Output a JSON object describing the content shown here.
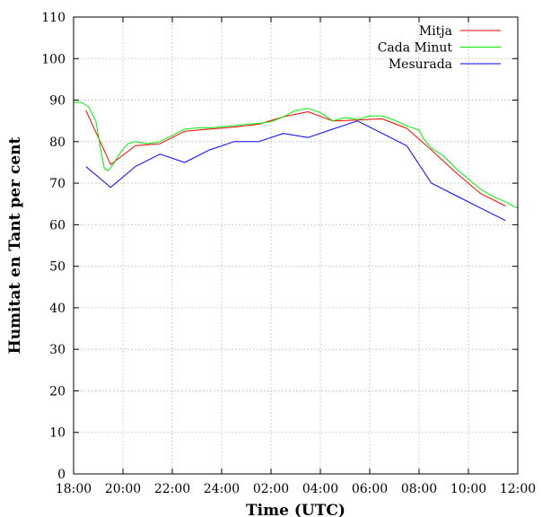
{
  "chart_data": {
    "type": "line",
    "xlabel": "Time (UTC)",
    "ylabel": "Humitat en Tant per cent",
    "ylim": [
      0,
      110
    ],
    "yticks": [
      0,
      10,
      20,
      30,
      40,
      50,
      60,
      70,
      80,
      90,
      100,
      110
    ],
    "xlim": [
      0,
      18
    ],
    "xticks": [
      {
        "v": 0,
        "label": "18:00"
      },
      {
        "v": 2,
        "label": "20:00"
      },
      {
        "v": 4,
        "label": "22:00"
      },
      {
        "v": 6,
        "label": "24:00"
      },
      {
        "v": 8,
        "label": "02:00"
      },
      {
        "v": 10,
        "label": "04:00"
      },
      {
        "v": 12,
        "label": "06:00"
      },
      {
        "v": 14,
        "label": "08:00"
      },
      {
        "v": 16,
        "label": "10:00"
      },
      {
        "v": 18,
        "label": "12:00"
      }
    ],
    "grid": true,
    "legend_position": "top-right",
    "series": [
      {
        "name": "Mitja",
        "color": "#ff0000",
        "x": [
          0.5,
          1.5,
          2.5,
          3.5,
          4.5,
          5.5,
          6.5,
          7.5,
          8.5,
          9.5,
          10.5,
          11.5,
          12.5,
          13.5,
          14.5,
          15.5,
          16.5,
          17.5
        ],
        "y": [
          87.5,
          74.5,
          79,
          79.5,
          82.5,
          83,
          83.5,
          84.2,
          86,
          87.2,
          85,
          85.2,
          85.5,
          83.2,
          78,
          72.5,
          67.5,
          64.5
        ]
      },
      {
        "name": "Cada Minut",
        "color": "#00ee00",
        "x": [
          0,
          0.3,
          0.6,
          0.9,
          1.1,
          1.25,
          1.4,
          1.6,
          1.85,
          2.2,
          2.5,
          3.0,
          3.5,
          4.0,
          4.5,
          5.0,
          5.5,
          6.0,
          6.5,
          7.0,
          7.5,
          8.0,
          8.5,
          9.0,
          9.5,
          10.0,
          10.5,
          11.0,
          11.5,
          12.0,
          12.5,
          13.0,
          13.5,
          14.0,
          14.2,
          14.5,
          15.0,
          15.5,
          16.0,
          16.5,
          17.0,
          17.5,
          18.0
        ],
        "y": [
          89.5,
          89.5,
          88.5,
          85,
          78,
          73.5,
          73,
          74.5,
          77,
          79.5,
          80,
          79.5,
          80,
          81.5,
          83,
          83.3,
          83.3,
          83.6,
          83.8,
          84.2,
          84.4,
          84.8,
          86,
          87.5,
          88,
          87,
          85,
          85.8,
          85.3,
          86.2,
          86.2,
          85.2,
          83.8,
          82.8,
          80.5,
          78.5,
          76.5,
          73.5,
          71,
          68.5,
          66.8,
          65.5,
          64
        ]
      },
      {
        "name": "Mesurada",
        "color": "#0000ff",
        "x": [
          0.5,
          1.5,
          2.5,
          3.5,
          4.5,
          5.5,
          6.5,
          7.5,
          8.5,
          9.5,
          10.5,
          11.5,
          12.5,
          13.5,
          14.5,
          15.5,
          16.5,
          17.5
        ],
        "y": [
          74,
          69,
          74,
          77,
          75,
          78,
          80,
          80,
          82,
          81,
          83,
          85,
          82,
          79,
          70,
          67,
          64,
          61
        ]
      }
    ]
  }
}
